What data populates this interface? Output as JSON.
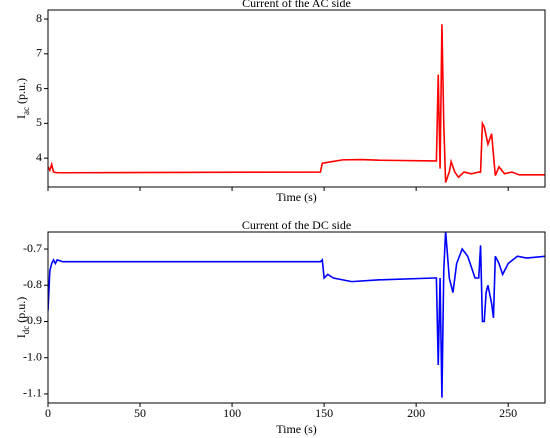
{
  "chart_data": [
    {
      "type": "line",
      "title": "Current of the AC side",
      "xlabel": "Time (s)",
      "ylabel": [
        "I",
        "ac",
        " (p.u.)"
      ],
      "xlim": [
        0,
        270
      ],
      "xticks": [
        0,
        50,
        100,
        150,
        200,
        250
      ],
      "show_xtick_labels": false,
      "ylim": [
        3.17,
        8.26
      ],
      "yticks": [
        4,
        5,
        6,
        7,
        8
      ],
      "series": [
        {
          "color": "#ff0000",
          "x": [
            0,
            1,
            2,
            3,
            5,
            10,
            148,
            149,
            152,
            160,
            170,
            180,
            210,
            211,
            212,
            213,
            214,
            215,
            216,
            218,
            219,
            221,
            223,
            226,
            230,
            234,
            235,
            236,
            237,
            239,
            241,
            243,
            245,
            248,
            252,
            256,
            270
          ],
          "values": [
            3.75,
            3.65,
            3.82,
            3.6,
            3.58,
            3.58,
            3.6,
            3.85,
            3.88,
            3.95,
            3.96,
            3.94,
            3.92,
            3.92,
            6.4,
            3.7,
            7.85,
            5.0,
            3.3,
            3.6,
            3.9,
            3.6,
            3.45,
            3.6,
            3.55,
            3.6,
            3.6,
            5.0,
            4.9,
            4.4,
            4.7,
            3.5,
            3.75,
            3.55,
            3.6,
            3.52,
            3.52
          ]
        }
      ]
    },
    {
      "type": "line",
      "title": "Current of the DC side",
      "xlabel": "Time (s)",
      "ylabel": [
        "I",
        "dc",
        " (p.u.)"
      ],
      "xlim": [
        0,
        270
      ],
      "xticks": [
        0,
        50,
        100,
        150,
        200,
        250
      ],
      "show_xtick_labels": true,
      "ylim": [
        -1.125,
        -0.653
      ],
      "yticks": [
        {
          "value": -0.7,
          "label": "-0.7"
        },
        {
          "value": -0.8,
          "label": "-0.8"
        },
        {
          "value": -0.9,
          "label": "-0.9"
        },
        {
          "value": -1.0,
          "label": "-1.0"
        },
        {
          "value": -1.1,
          "label": "-1.1"
        }
      ],
      "series": [
        {
          "color": "#0000ff",
          "x": [
            0,
            1,
            2,
            3,
            4,
            5,
            8,
            20,
            148,
            149,
            150,
            152,
            155,
            165,
            180,
            210,
            211,
            212,
            213,
            214,
            215,
            216,
            218,
            220,
            222,
            225,
            228,
            232,
            234,
            235,
            236,
            237,
            238,
            239,
            241,
            242,
            243,
            245,
            247,
            250,
            255,
            260,
            270
          ],
          "values": [
            -0.87,
            -0.76,
            -0.74,
            -0.73,
            -0.74,
            -0.73,
            -0.735,
            -0.735,
            -0.735,
            -0.73,
            -0.78,
            -0.77,
            -0.78,
            -0.79,
            -0.785,
            -0.78,
            -0.78,
            -1.02,
            -0.78,
            -1.11,
            -0.76,
            -0.65,
            -0.78,
            -0.82,
            -0.74,
            -0.7,
            -0.72,
            -0.78,
            -0.78,
            -0.69,
            -0.9,
            -0.9,
            -0.82,
            -0.8,
            -0.85,
            -0.89,
            -0.72,
            -0.74,
            -0.77,
            -0.74,
            -0.72,
            -0.725,
            -0.72
          ]
        }
      ]
    }
  ]
}
